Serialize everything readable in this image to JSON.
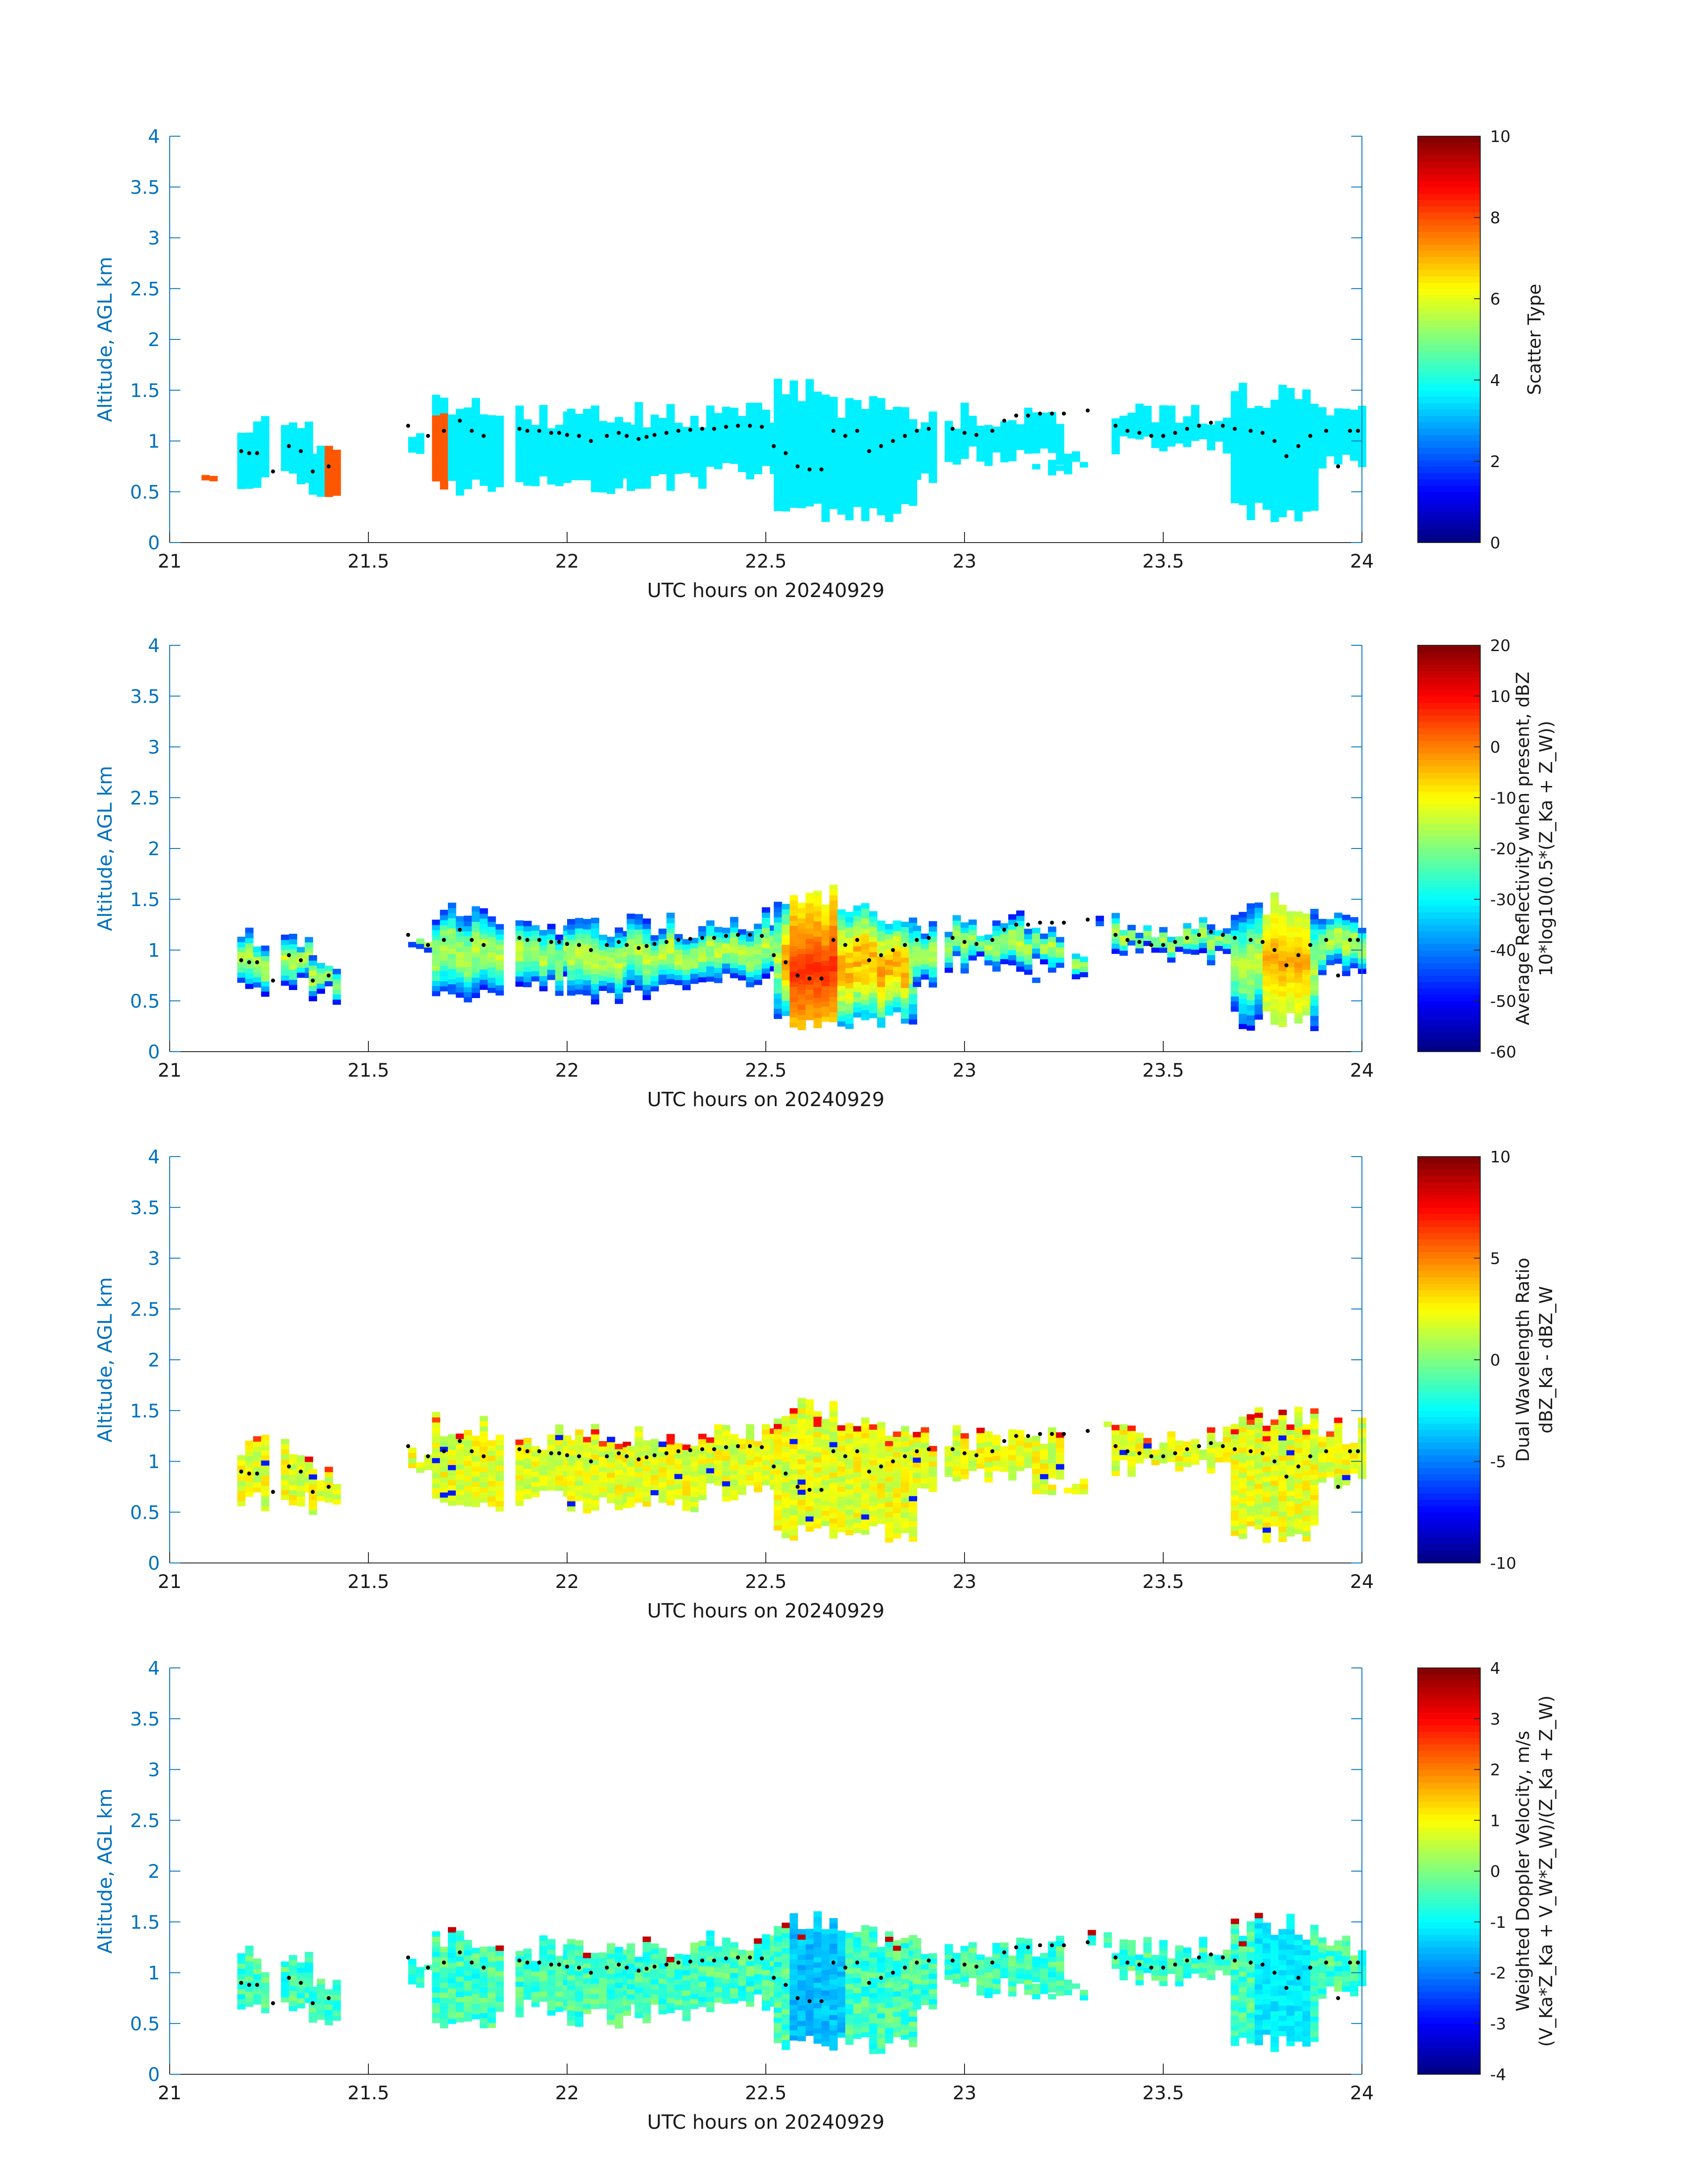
{
  "figure": {
    "colormap": "jet",
    "axis_color": "#0072bd"
  },
  "chart_data": [
    {
      "type": "heatmap",
      "xlabel": "UTC hours on 20240929",
      "ylabel": "Altitude, AGL km",
      "xlim": [
        21,
        24
      ],
      "ylim": [
        0,
        4
      ],
      "xticks": [
        21,
        21.5,
        22,
        22.5,
        23,
        23.5,
        24
      ],
      "yticks": [
        0,
        0.5,
        1,
        1.5,
        2,
        2.5,
        3,
        3.5,
        4
      ],
      "colorbar": {
        "label_lines": [
          "Scatter Type"
        ],
        "range": [
          0,
          10
        ],
        "ticks": [
          0,
          2,
          4,
          6,
          8,
          10
        ]
      },
      "field": "scatter_type",
      "dominant_value": 3.6,
      "secondary_value": 7.9
    },
    {
      "type": "heatmap",
      "xlabel": "UTC hours on 20240929",
      "ylabel": "Altitude, AGL km",
      "xlim": [
        21,
        24
      ],
      "ylim": [
        0,
        4
      ],
      "xticks": [
        21,
        21.5,
        22,
        22.5,
        23,
        23.5,
        24
      ],
      "yticks": [
        0,
        0.5,
        1,
        1.5,
        2,
        2.5,
        3,
        3.5,
        4
      ],
      "colorbar": {
        "label_lines": [
          "Average Reflectivity when present, dBZ",
          "10*log10(0.5*(Z_Ka + Z_W))"
        ],
        "range": [
          -60,
          20
        ],
        "ticks": [
          -60,
          -50,
          -40,
          -30,
          -20,
          -10,
          0,
          10,
          20
        ]
      },
      "field": "reflectivity",
      "core_value": 5
    },
    {
      "type": "heatmap",
      "xlabel": "UTC hours on 20240929",
      "ylabel": "Altitude, AGL km",
      "xlim": [
        21,
        24
      ],
      "ylim": [
        0,
        4
      ],
      "xticks": [
        21,
        21.5,
        22,
        22.5,
        23,
        23.5,
        24
      ],
      "yticks": [
        0,
        0.5,
        1,
        1.5,
        2,
        2.5,
        3,
        3.5,
        4
      ],
      "colorbar": {
        "label_lines": [
          "Dual Wavelength Ratio",
          "dBZ_Ka - dBZ_W"
        ],
        "range": [
          -10,
          10
        ],
        "ticks": [
          -10,
          -5,
          0,
          5,
          10
        ]
      },
      "field": "dwr",
      "typical_value": 2
    },
    {
      "type": "heatmap",
      "xlabel": "UTC hours on 20240929",
      "ylabel": "Altitude, AGL km",
      "xlim": [
        21,
        24
      ],
      "ylim": [
        0,
        4
      ],
      "xticks": [
        21,
        21.5,
        22,
        22.5,
        23,
        23.5,
        24
      ],
      "yticks": [
        0,
        0.5,
        1,
        1.5,
        2,
        2.5,
        3,
        3.5,
        4
      ],
      "colorbar": {
        "label_lines": [
          "Weighted Doppler Velocity, m/s",
          "(V_Ka*Z_Ka + V_W*Z_W)/(Z_Ka + Z_W)"
        ],
        "range": [
          -4,
          4
        ],
        "ticks": [
          -4,
          -3,
          -2,
          -1,
          0,
          1,
          2,
          3,
          4
        ]
      },
      "field": "velocity",
      "typical_value": 0
    }
  ],
  "cloud_columns": [
    {
      "x0": 21.08,
      "x1": 21.14,
      "base": 0.6,
      "top": 0.72
    },
    {
      "x0": 21.17,
      "x1": 21.25,
      "base": 0.5,
      "top": 1.25
    },
    {
      "x0": 21.28,
      "x1": 21.35,
      "base": 0.55,
      "top": 1.25
    },
    {
      "x0": 21.35,
      "x1": 21.43,
      "base": 0.45,
      "top": 0.95
    },
    {
      "x0": 21.6,
      "x1": 21.66,
      "base": 0.85,
      "top": 1.2
    },
    {
      "x0": 21.66,
      "x1": 21.83,
      "base": 0.45,
      "top": 1.45
    },
    {
      "x0": 21.87,
      "x1": 22.0,
      "base": 0.55,
      "top": 1.35
    },
    {
      "x0": 22.0,
      "x1": 22.15,
      "base": 0.45,
      "top": 1.35
    },
    {
      "x0": 22.15,
      "x1": 22.35,
      "base": 0.5,
      "top": 1.35
    },
    {
      "x0": 22.35,
      "x1": 22.52,
      "base": 0.6,
      "top": 1.4
    },
    {
      "x0": 22.52,
      "x1": 22.68,
      "base": 0.2,
      "top": 1.62
    },
    {
      "x0": 22.68,
      "x1": 22.87,
      "base": 0.2,
      "top": 1.45
    },
    {
      "x0": 22.87,
      "x1": 22.93,
      "base": 0.55,
      "top": 1.35
    },
    {
      "x0": 22.95,
      "x1": 23.25,
      "base": 0.75,
      "top": 1.35
    },
    {
      "x0": 23.17,
      "x1": 23.3,
      "base": 0.65,
      "top": 0.95
    },
    {
      "x0": 23.31,
      "x1": 23.37,
      "base": 1.2,
      "top": 1.4
    },
    {
      "x0": 23.37,
      "x1": 23.67,
      "base": 0.85,
      "top": 1.35
    },
    {
      "x0": 23.67,
      "x1": 23.89,
      "base": 0.2,
      "top": 1.55
    },
    {
      "x0": 23.89,
      "x1": 24.0,
      "base": 0.7,
      "top": 1.4
    }
  ],
  "cloud_base_points": [
    [
      21.18,
      0.9
    ],
    [
      21.2,
      0.88
    ],
    [
      21.22,
      0.88
    ],
    [
      21.26,
      0.7
    ],
    [
      21.3,
      0.95
    ],
    [
      21.33,
      0.9
    ],
    [
      21.36,
      0.7
    ],
    [
      21.4,
      0.75
    ],
    [
      21.6,
      1.15
    ],
    [
      21.65,
      1.05
    ],
    [
      21.69,
      1.1
    ],
    [
      21.73,
      1.2
    ],
    [
      21.76,
      1.1
    ],
    [
      21.79,
      1.05
    ],
    [
      21.88,
      1.12
    ],
    [
      21.9,
      1.1
    ],
    [
      21.93,
      1.1
    ],
    [
      21.96,
      1.08
    ],
    [
      21.98,
      1.08
    ],
    [
      22.0,
      1.06
    ],
    [
      22.03,
      1.05
    ],
    [
      22.06,
      1.0
    ],
    [
      22.1,
      1.05
    ],
    [
      22.13,
      1.08
    ],
    [
      22.15,
      1.05
    ],
    [
      22.18,
      1.02
    ],
    [
      22.2,
      1.04
    ],
    [
      22.22,
      1.06
    ],
    [
      22.25,
      1.08
    ],
    [
      22.28,
      1.1
    ],
    [
      22.31,
      1.11
    ],
    [
      22.34,
      1.12
    ],
    [
      22.37,
      1.12
    ],
    [
      22.4,
      1.14
    ],
    [
      22.43,
      1.15
    ],
    [
      22.46,
      1.15
    ],
    [
      22.49,
      1.14
    ],
    [
      22.52,
      0.95
    ],
    [
      22.55,
      0.88
    ],
    [
      22.58,
      0.75
    ],
    [
      22.61,
      0.72
    ],
    [
      22.64,
      0.72
    ],
    [
      22.67,
      1.1
    ],
    [
      22.7,
      1.05
    ],
    [
      22.73,
      1.1
    ],
    [
      22.76,
      0.9
    ],
    [
      22.79,
      0.95
    ],
    [
      22.82,
      1.0
    ],
    [
      22.85,
      1.05
    ],
    [
      22.88,
      1.1
    ],
    [
      22.91,
      1.12
    ],
    [
      22.97,
      1.12
    ],
    [
      23.0,
      1.08
    ],
    [
      23.03,
      1.06
    ],
    [
      23.07,
      1.1
    ],
    [
      23.1,
      1.2
    ],
    [
      23.13,
      1.25
    ],
    [
      23.16,
      1.25
    ],
    [
      23.19,
      1.27
    ],
    [
      23.22,
      1.27
    ],
    [
      23.25,
      1.27
    ],
    [
      23.31,
      1.3
    ],
    [
      23.38,
      1.15
    ],
    [
      23.41,
      1.1
    ],
    [
      23.44,
      1.08
    ],
    [
      23.47,
      1.05
    ],
    [
      23.5,
      1.05
    ],
    [
      23.53,
      1.08
    ],
    [
      23.56,
      1.12
    ],
    [
      23.59,
      1.15
    ],
    [
      23.62,
      1.18
    ],
    [
      23.65,
      1.15
    ],
    [
      23.68,
      1.12
    ],
    [
      23.72,
      1.1
    ],
    [
      23.75,
      1.08
    ],
    [
      23.78,
      1.0
    ],
    [
      23.81,
      0.85
    ],
    [
      23.84,
      0.95
    ],
    [
      23.87,
      1.05
    ],
    [
      23.91,
      1.1
    ],
    [
      23.94,
      0.75
    ],
    [
      23.97,
      1.1
    ],
    [
      23.99,
      1.1
    ]
  ]
}
